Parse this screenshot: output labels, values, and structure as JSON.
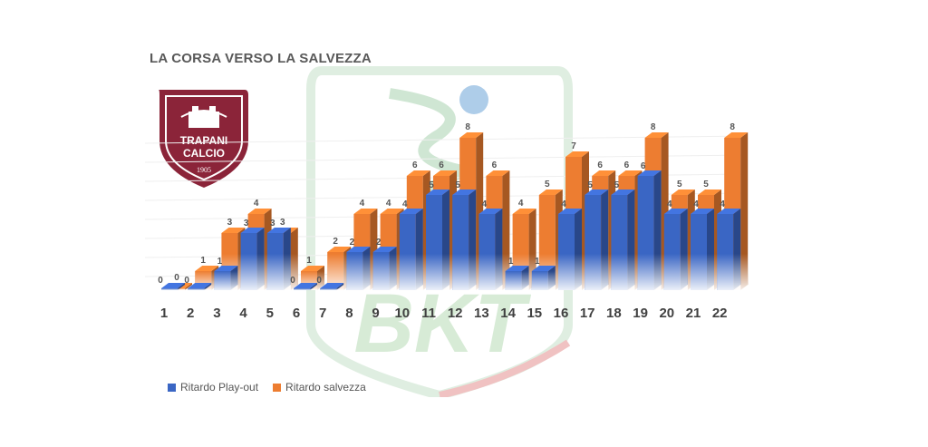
{
  "title": "LA CORSA VERSO LA SALVEZZA",
  "logo": {
    "line1": "TRAPANI",
    "line2": "CALCIO",
    "year": "1905",
    "icon": "trapani-calcio-crest"
  },
  "watermark": {
    "text": "BKT",
    "icon": "serie-bkt-logo"
  },
  "colors": {
    "series1": "#3a66c4",
    "series2": "#ed7d31"
  },
  "chart_data": {
    "type": "bar",
    "title": "LA CORSA VERSO LA SALVEZZA",
    "categories": [
      "1",
      "2",
      "3",
      "4",
      "5",
      "6",
      "7",
      "8",
      "9",
      "10",
      "11",
      "12",
      "13",
      "14",
      "15",
      "16",
      "17",
      "18",
      "19",
      "20",
      "21",
      "22"
    ],
    "series": [
      {
        "name": "Ritardo Play-out",
        "values": [
          0,
          0,
          1,
          3,
          3,
          0,
          0,
          2,
          2,
          4,
          5,
          5,
          4,
          1,
          1,
          4,
          5,
          5,
          6,
          4,
          4,
          4
        ]
      },
      {
        "name": "Ritardo salvezza",
        "values": [
          0,
          1,
          3,
          4,
          3,
          1,
          2,
          4,
          4,
          6,
          6,
          8,
          6,
          4,
          5,
          7,
          6,
          6,
          8,
          5,
          5,
          8
        ]
      }
    ],
    "ylim": [
      0,
      8
    ],
    "grid": true,
    "legend": "bottom-left"
  }
}
